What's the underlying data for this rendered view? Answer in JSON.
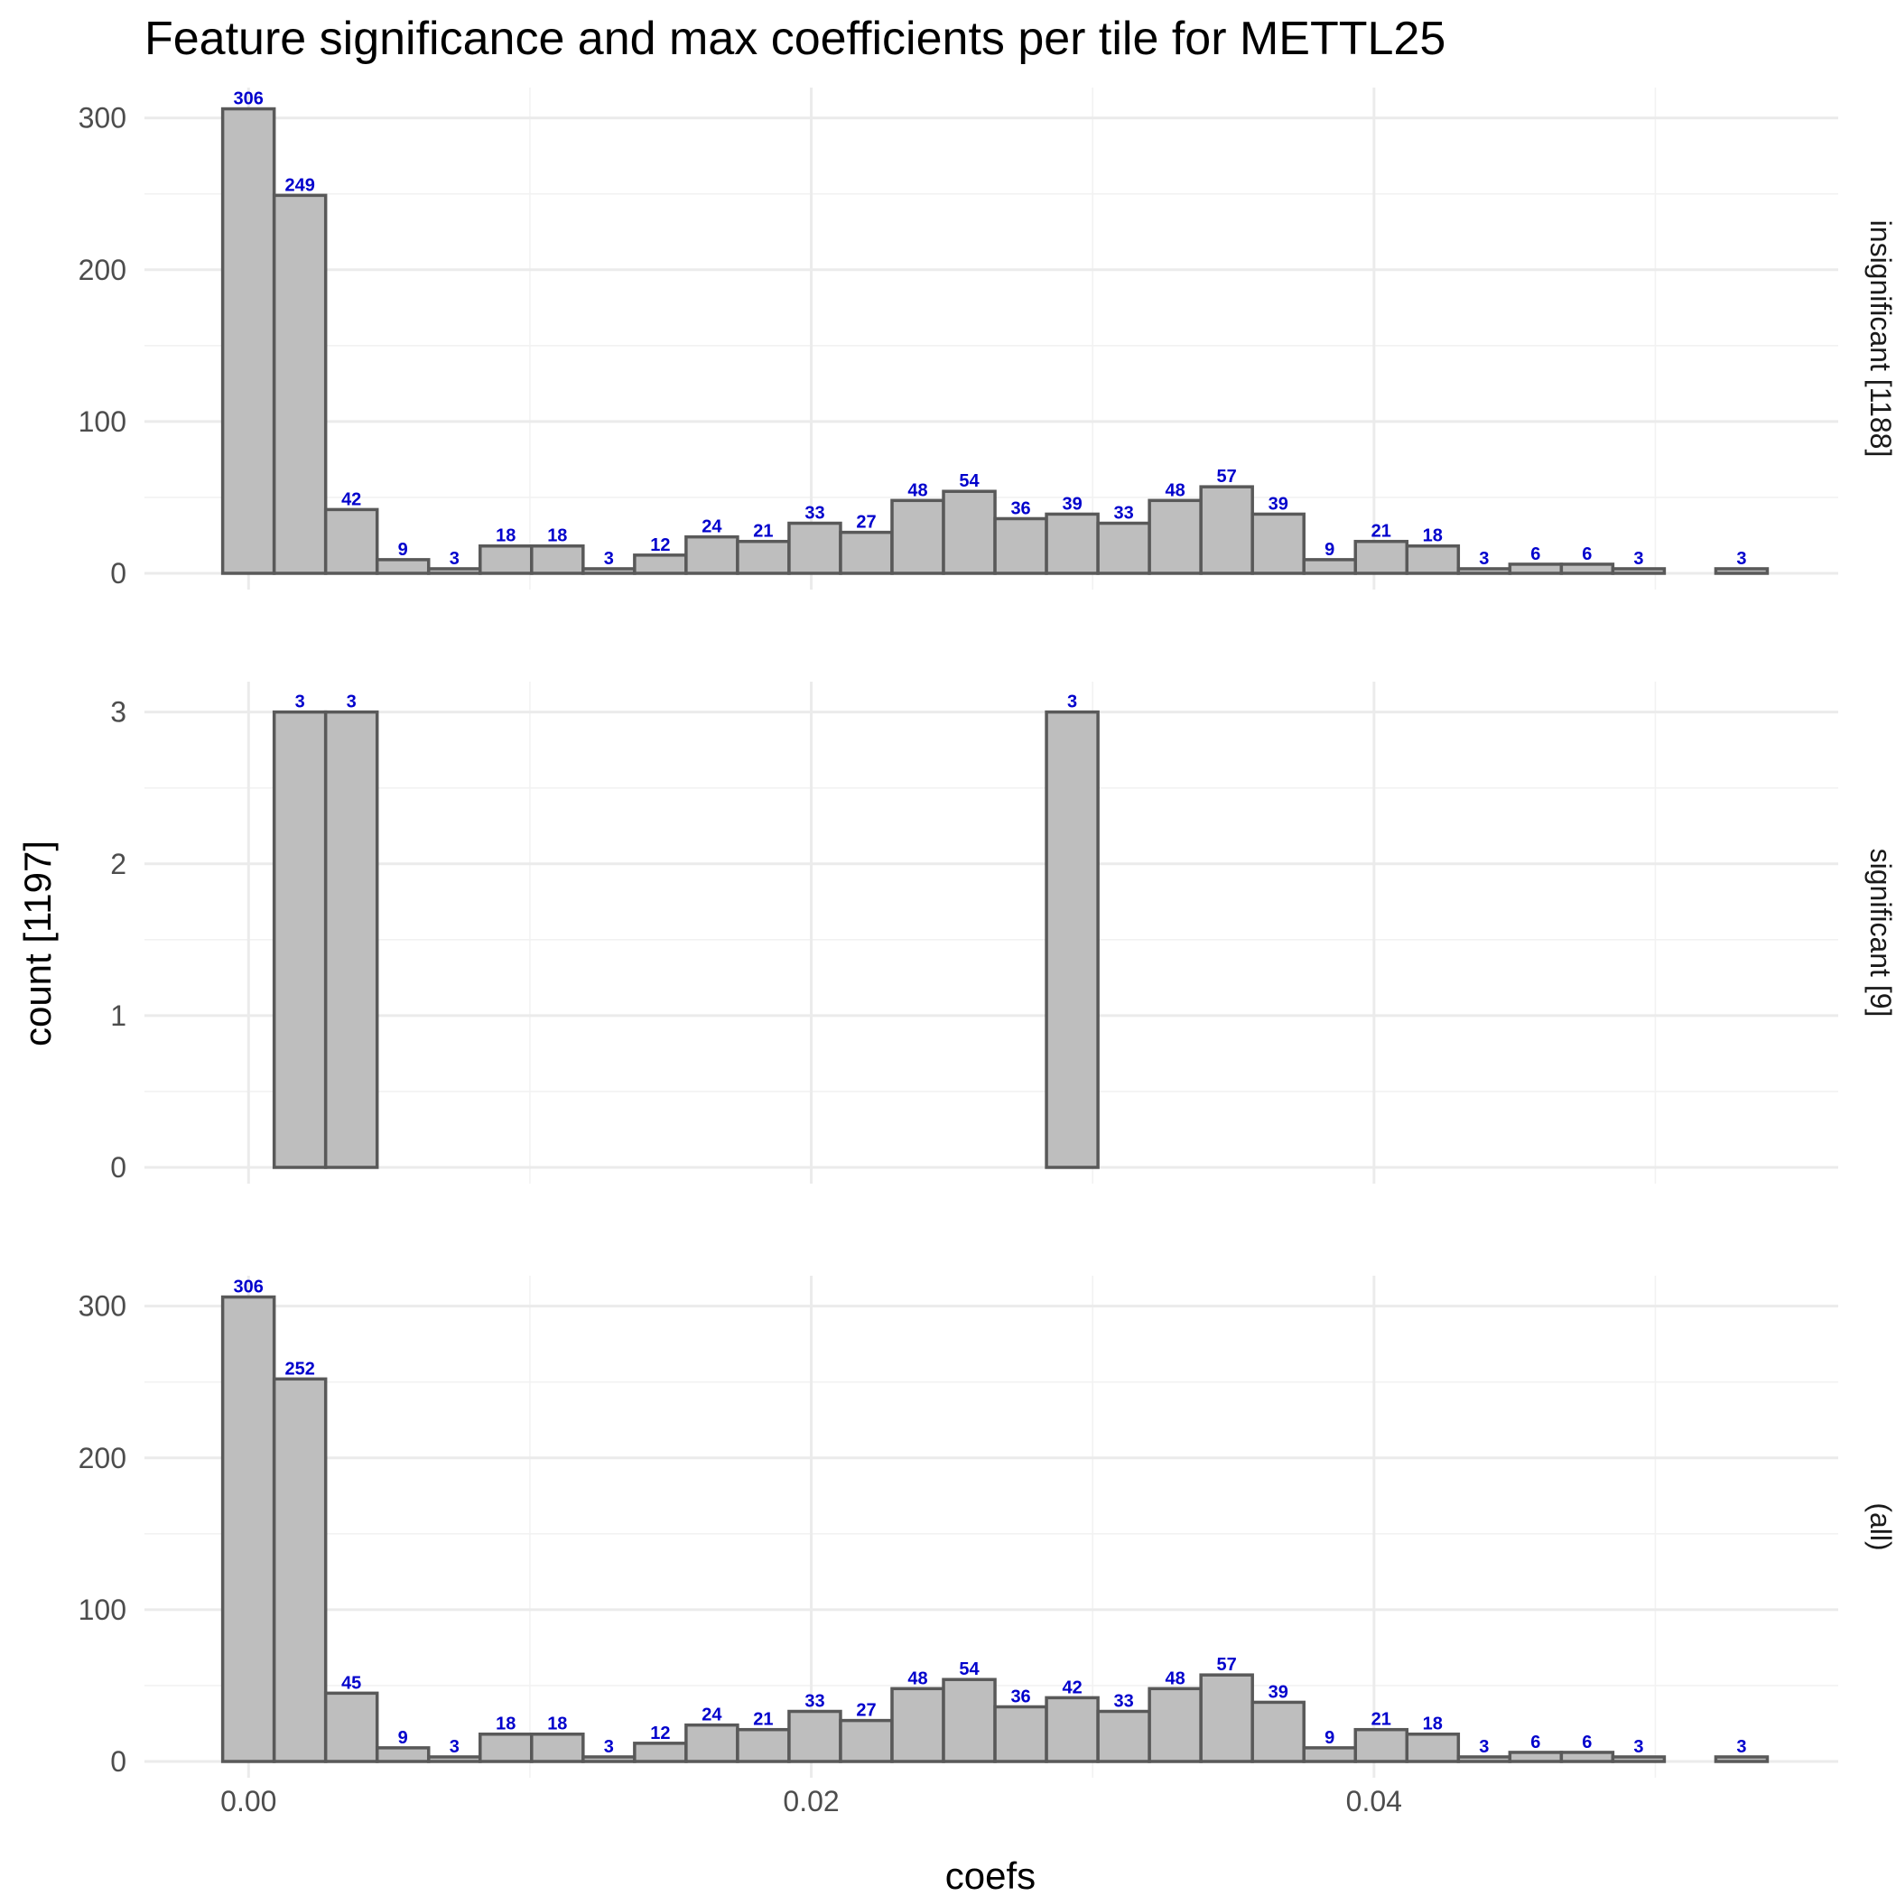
{
  "chart_data": {
    "type": "bar",
    "title": "Feature significance and max coefficients per tile for METTL25",
    "xlabel": "coefs",
    "ylabel": "count [1197]",
    "bin_start": -0.00092,
    "bin_width": 0.00183,
    "xlim": [
      -0.0037,
      0.0565
    ],
    "x_ticks": [
      0.0,
      0.02,
      0.04
    ],
    "x_tick_labels": [
      "0.00",
      "0.02",
      "0.04"
    ],
    "grid": true,
    "panels": [
      {
        "strip_label": "insignificant [1188]",
        "ylim": [
          0,
          320
        ],
        "y_ticks": [
          0,
          100,
          200,
          300
        ],
        "y_tick_labels": [
          "0",
          "100",
          "200",
          "300"
        ],
        "values": [
          306,
          249,
          42,
          9,
          3,
          18,
          18,
          3,
          12,
          24,
          21,
          33,
          27,
          48,
          54,
          36,
          39,
          33,
          48,
          57,
          39,
          9,
          21,
          18,
          3,
          6,
          6,
          3,
          0,
          3
        ],
        "data_labels": [
          "306",
          "249",
          "42",
          "9",
          "3",
          "18",
          "18",
          "3",
          "12",
          "24",
          "21",
          "33",
          "27",
          "48",
          "54",
          "36",
          "39",
          "33",
          "48",
          "57",
          "39",
          "9",
          "21",
          "18",
          "3",
          "6",
          "6",
          "3",
          "",
          "3"
        ]
      },
      {
        "strip_label": "significant [9]",
        "ylim": [
          0,
          3.2
        ],
        "y_ticks": [
          0,
          1,
          2,
          3
        ],
        "y_tick_labels": [
          "0",
          "1",
          "2",
          "3"
        ],
        "values": [
          0,
          3,
          3,
          0,
          0,
          0,
          0,
          0,
          0,
          0,
          0,
          0,
          0,
          0,
          0,
          0,
          3,
          0,
          0,
          0,
          0,
          0,
          0,
          0,
          0,
          0,
          0,
          0,
          0,
          0
        ],
        "data_labels": [
          "",
          "3",
          "3",
          "",
          "",
          "",
          "",
          "",
          "",
          "",
          "",
          "",
          "",
          "",
          "",
          "",
          "3",
          "",
          "",
          "",
          "",
          "",
          "",
          "",
          "",
          "",
          "",
          "",
          "",
          ""
        ]
      },
      {
        "strip_label": "(all)",
        "ylim": [
          0,
          320
        ],
        "y_ticks": [
          0,
          100,
          200,
          300
        ],
        "y_tick_labels": [
          "0",
          "100",
          "200",
          "300"
        ],
        "values": [
          306,
          252,
          45,
          9,
          3,
          18,
          18,
          3,
          12,
          24,
          21,
          33,
          27,
          48,
          54,
          36,
          42,
          33,
          48,
          57,
          39,
          9,
          21,
          18,
          3,
          6,
          6,
          3,
          0,
          3
        ],
        "data_labels": [
          "306",
          "252",
          "45",
          "9",
          "3",
          "18",
          "18",
          "3",
          "12",
          "24",
          "21",
          "33",
          "27",
          "48",
          "54",
          "36",
          "42",
          "33",
          "48",
          "57",
          "39",
          "9",
          "21",
          "18",
          "3",
          "6",
          "6",
          "3",
          "",
          "3"
        ]
      }
    ],
    "colors": {
      "bar_fill": "#bebebe",
      "bar_outline": "#595959",
      "label": "#0000cc",
      "grid": "#ebebeb"
    }
  }
}
